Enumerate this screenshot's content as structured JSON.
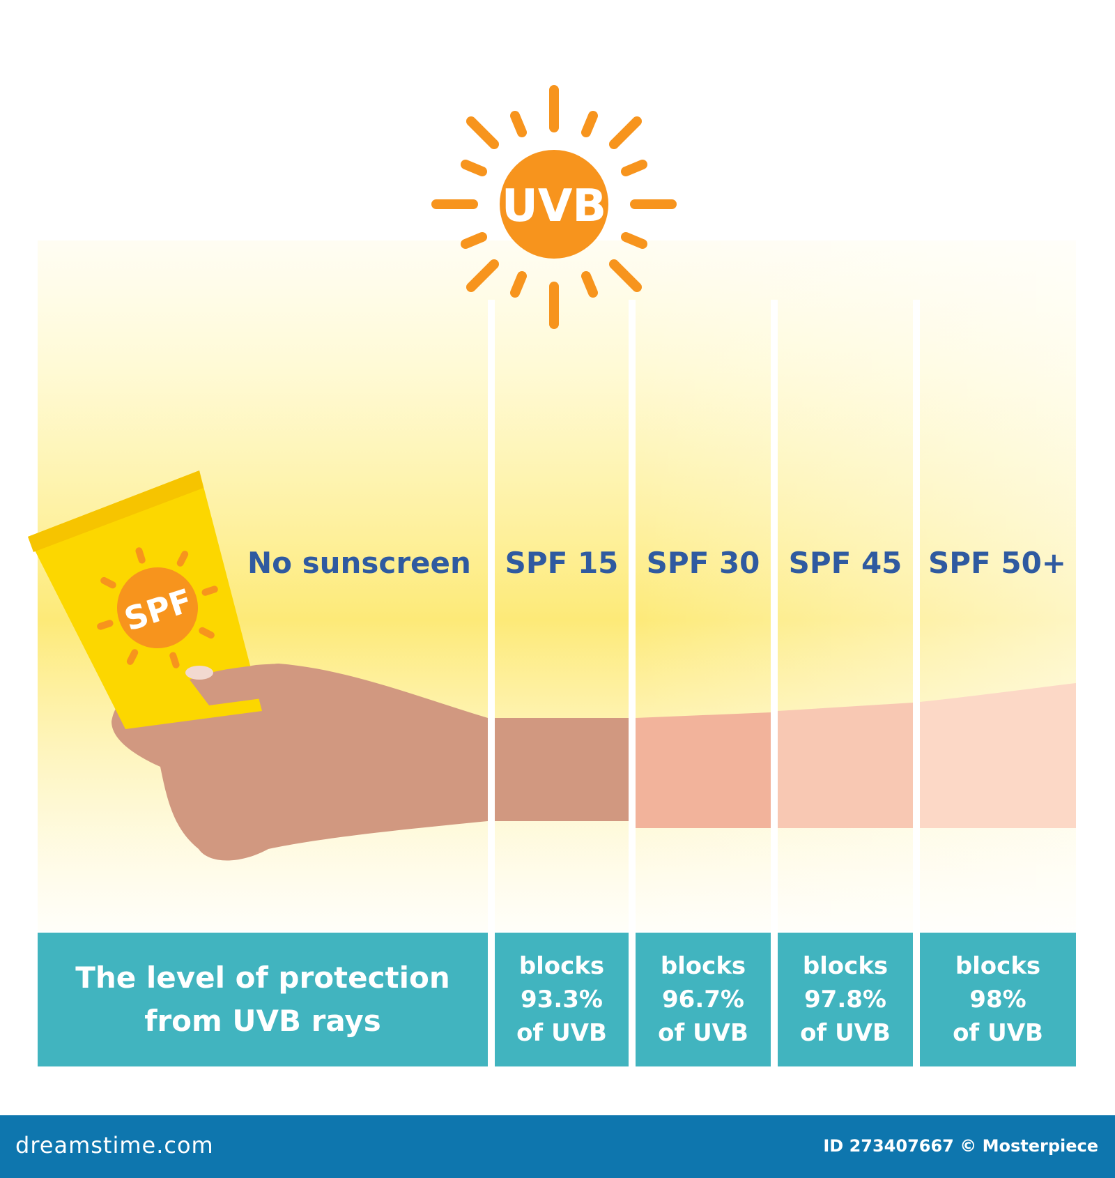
{
  "sun": {
    "label": "UVB",
    "color": "#f7941d"
  },
  "tube": {
    "label": "SPF",
    "color": "#fcd700"
  },
  "columns": [
    {
      "label": "No sunscreen",
      "skin_color": "#d19880"
    },
    {
      "label": "SPF 15",
      "skin_color": "#d19880",
      "blocks": [
        "blocks",
        "93.3%",
        "of UVB"
      ]
    },
    {
      "label": "SPF 30",
      "skin_color": "#f2b39b",
      "blocks": [
        "blocks",
        "96.7%",
        "of UVB"
      ]
    },
    {
      "label": "SPF 45",
      "skin_color": "#f8c8b3",
      "blocks": [
        "blocks",
        "97.8%",
        "of UVB"
      ]
    },
    {
      "label": "SPF 50+",
      "skin_color": "#fcd8c6",
      "blocks": [
        "blocks",
        "98%",
        "of UVB"
      ]
    }
  ],
  "protection_caption": [
    "The level of protection",
    "from UVB rays"
  ],
  "box_color": "#41b4bf",
  "label_color": "#2f5aa0",
  "footer": {
    "brand": "dreamstime.com",
    "credit": "ID 273407667 © Mosterpiece"
  }
}
